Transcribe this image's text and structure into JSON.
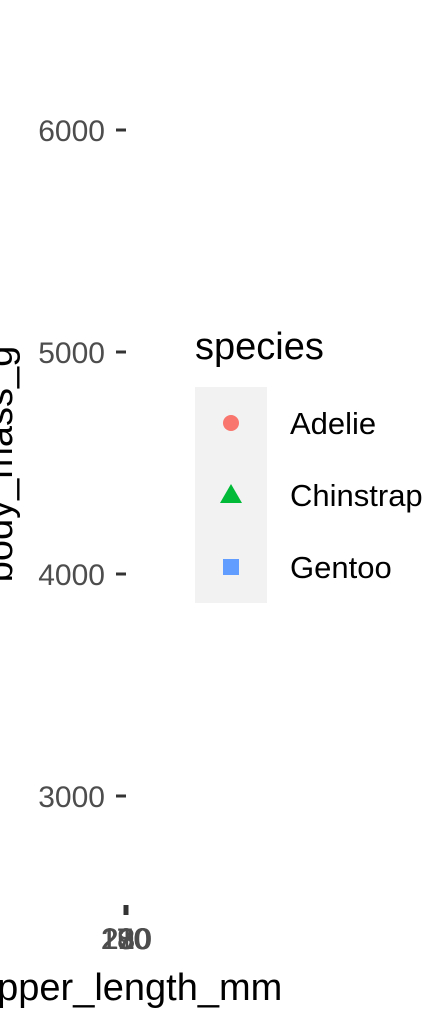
{
  "chart_data": {
    "type": "scatter",
    "title": "",
    "xlabel": "flipper_length_mm",
    "ylabel": "body_mass_g",
    "x_ticks": [
      170,
      180,
      190,
      200,
      210,
      220,
      230
    ],
    "y_ticks": [
      3000,
      4000,
      5000,
      6000
    ],
    "ylim": [
      2500,
      6300
    ],
    "grid": false,
    "legend": {
      "title": "species",
      "placement": "right",
      "entries": [
        {
          "label": "Adelie",
          "shape": "circle",
          "color": "#F8766D"
        },
        {
          "label": "Chinstrap",
          "shape": "triangle",
          "color": "#00BA38"
        },
        {
          "label": "Gentoo",
          "shape": "square",
          "color": "#619CFF"
        }
      ]
    },
    "series": []
  }
}
